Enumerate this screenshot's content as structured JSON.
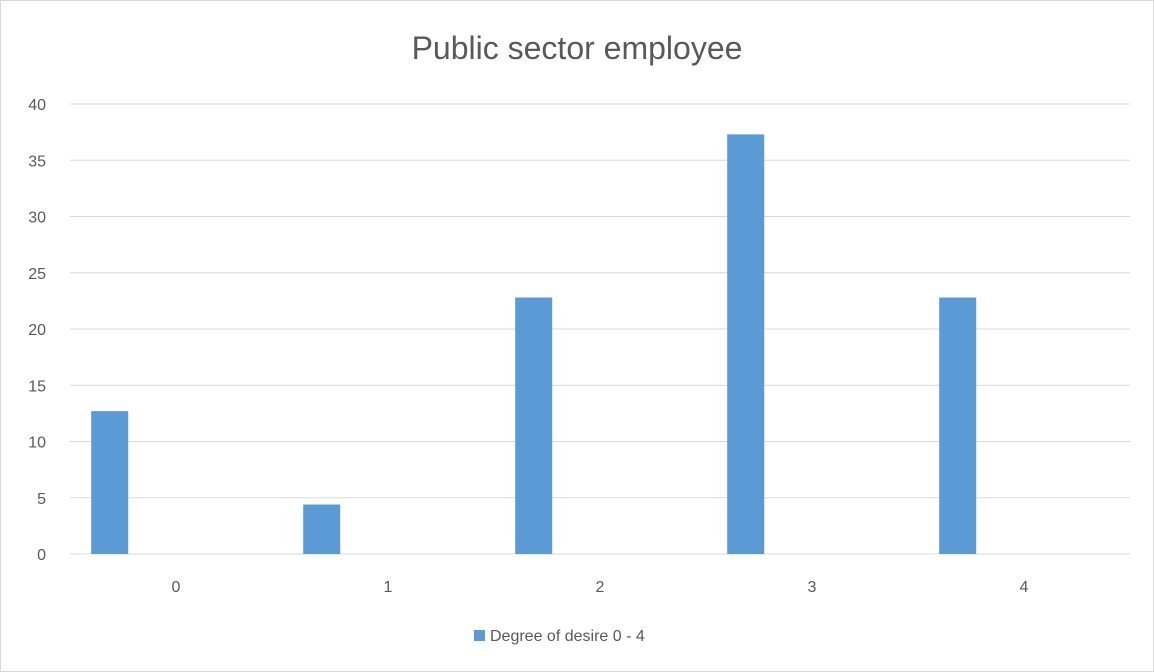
{
  "chart_data": {
    "type": "bar",
    "title": "Public sector employee",
    "xlabel": "",
    "ylabel": "",
    "categories": [
      "0",
      "1",
      "2",
      "3",
      "4"
    ],
    "series": [
      {
        "name": "Degree of desire 0 - 4",
        "values": [
          12.7,
          4.4,
          22.8,
          37.3,
          22.8
        ],
        "color": "#5b9bd5"
      }
    ],
    "ylim": [
      0,
      40
    ],
    "yticks": [
      "0",
      "5",
      "10",
      "15",
      "20",
      "25",
      "30",
      "35",
      "40"
    ],
    "grid": true,
    "legend_position": "bottom"
  }
}
